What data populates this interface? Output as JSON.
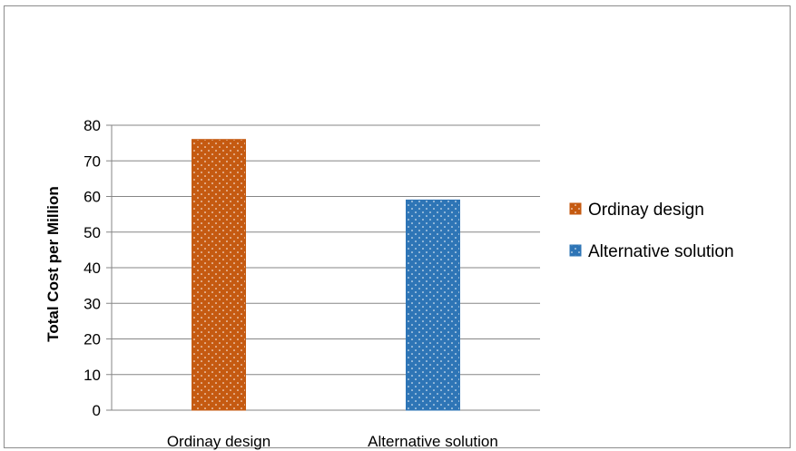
{
  "chart_data": {
    "type": "bar",
    "title": "",
    "xlabel": "",
    "ylabel": "Total Cost per Million",
    "ylim": [
      0,
      80
    ],
    "yticks": [
      0,
      10,
      20,
      30,
      40,
      50,
      60,
      70,
      80
    ],
    "grid": true,
    "legend_position": "right",
    "categories": [
      "Ordinay design",
      "Alternative solution"
    ],
    "series": [
      {
        "name": "Ordinay design",
        "values": [
          76,
          0
        ],
        "color": "#c55a11",
        "pattern": "dotted"
      },
      {
        "name": "Alternative solution",
        "values": [
          0,
          59
        ],
        "color": "#2e75b6",
        "pattern": "dotted"
      }
    ]
  }
}
